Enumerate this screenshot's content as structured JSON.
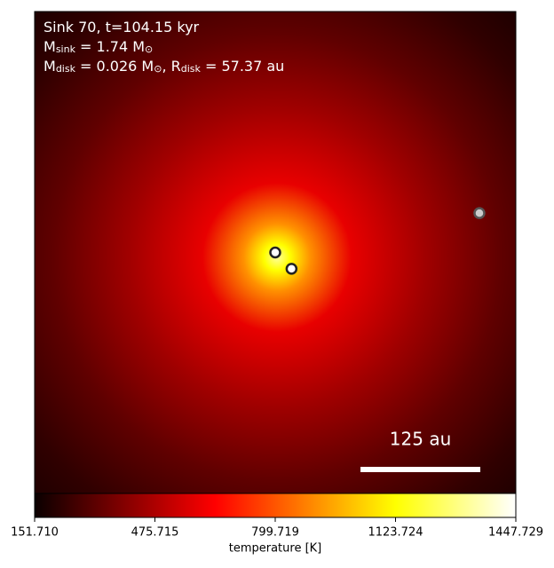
{
  "chart_data": {
    "type": "heatmap",
    "colormap": "hot",
    "annotation": [
      [
        {
          "t": "Sink 70, t=104.15 kyr"
        }
      ],
      [
        {
          "t": "M"
        },
        {
          "sub": "sink"
        },
        {
          "t": " = 1.74 M"
        },
        {
          "sub": "⊙"
        }
      ],
      [
        {
          "t": "M"
        },
        {
          "sub": "disk"
        },
        {
          "t": " = 0.026 M"
        },
        {
          "sub": "⊙"
        },
        {
          "t": ", R"
        },
        {
          "sub": "disk"
        },
        {
          "t": " = 57.37 au"
        }
      ]
    ],
    "xlim": [
      -251,
      251
    ],
    "ylim": [
      -251,
      251
    ],
    "sinks": {
      "x": [
        0,
        17,
        213
      ],
      "y": [
        0,
        -17,
        41
      ]
    },
    "scale_bar": {
      "value": 125,
      "label": "125 au"
    },
    "colorbar": {
      "label": "temperature [K]",
      "clim": [
        151.71,
        1447.729
      ],
      "ticks": [
        {
          "value": 151.71,
          "label": "151.710"
        },
        {
          "value": 475.715,
          "label": "475.715"
        },
        {
          "value": 799.719,
          "label": "799.719"
        },
        {
          "value": 1123.724,
          "label": "1123.724"
        },
        {
          "value": 1447.729,
          "label": "1447.729"
        }
      ]
    }
  }
}
